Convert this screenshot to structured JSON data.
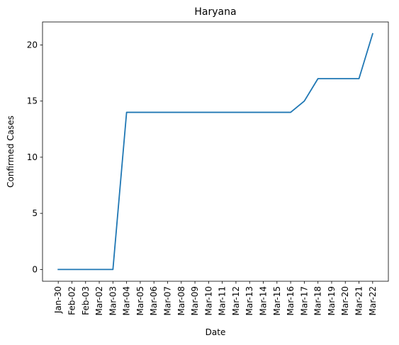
{
  "chart_data": {
    "type": "line",
    "title": "Haryana",
    "xlabel": "Date",
    "ylabel": "Confirmed Cases",
    "categories": [
      "Jan-30",
      "Feb-02",
      "Feb-03",
      "Mar-02",
      "Mar-03",
      "Mar-04",
      "Mar-05",
      "Mar-06",
      "Mar-07",
      "Mar-08",
      "Mar-09",
      "Mar-10",
      "Mar-11",
      "Mar-12",
      "Mar-13",
      "Mar-14",
      "Mar-15",
      "Mar-16",
      "Mar-17",
      "Mar-18",
      "Mar-19",
      "Mar-20",
      "Mar-21",
      "Mar-22"
    ],
    "series": [
      {
        "values": [
          0,
          0,
          0,
          0,
          0,
          14,
          14,
          14,
          14,
          14,
          14,
          14,
          14,
          14,
          14,
          14,
          14,
          14,
          15,
          17,
          17,
          17,
          17,
          21
        ],
        "color": "#1f77b4"
      }
    ],
    "yticks": [
      0,
      5,
      10,
      15,
      20
    ],
    "ylim": [
      -1.05,
      22.05
    ],
    "grid": false,
    "legend": "none"
  }
}
